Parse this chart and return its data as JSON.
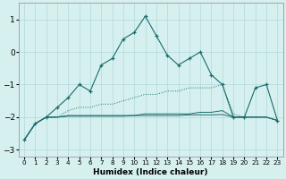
{
  "xlabel": "Humidex (Indice chaleur)",
  "background_color": "#d6f0f0",
  "grid_color": "#c8e8e8",
  "line_color": "#1a6b6b",
  "xlim": [
    -0.5,
    23.5
  ],
  "ylim": [
    -3.2,
    1.5
  ],
  "yticks": [
    -3,
    -2,
    -1,
    0,
    1
  ],
  "xticks": [
    0,
    1,
    2,
    3,
    4,
    5,
    6,
    7,
    8,
    9,
    10,
    11,
    12,
    13,
    14,
    15,
    16,
    17,
    18,
    19,
    20,
    21,
    22,
    23
  ],
  "s1_x": [
    0,
    1,
    2,
    3,
    4,
    5,
    6,
    7,
    8,
    9,
    10,
    11,
    12,
    13,
    14,
    15,
    16,
    17,
    18,
    19,
    20,
    21,
    22,
    23
  ],
  "s1_y": [
    -2.7,
    -2.2,
    -2.0,
    -1.7,
    -1.4,
    -1.0,
    -1.2,
    -0.4,
    -0.2,
    0.4,
    0.6,
    1.1,
    0.5,
    -0.1,
    -0.4,
    -0.2,
    0.0,
    -0.7,
    -1.0,
    -2.0,
    -2.0,
    -1.1,
    -1.0,
    -2.1
  ],
  "s2_x": [
    0,
    1,
    2,
    3,
    4,
    5,
    6,
    7,
    8,
    9,
    10,
    11,
    12,
    13,
    14,
    15,
    16,
    17,
    18,
    19,
    20,
    21,
    22,
    23
  ],
  "s2_y": [
    -2.7,
    -2.2,
    -2.0,
    -2.0,
    -1.8,
    -1.7,
    -1.7,
    -1.6,
    -1.6,
    -1.5,
    -1.4,
    -1.3,
    -1.3,
    -1.2,
    -1.2,
    -1.1,
    -1.1,
    -1.1,
    -1.0,
    -1.9,
    -2.0,
    -2.0,
    -2.0,
    -2.1
  ],
  "s3_x": [
    0,
    1,
    2,
    3,
    4,
    5,
    6,
    7,
    8,
    9,
    10,
    11,
    12,
    13,
    14,
    15,
    16,
    17,
    18,
    19,
    20,
    21,
    22,
    23
  ],
  "s3_y": [
    -2.7,
    -2.2,
    -2.0,
    -2.0,
    -1.95,
    -1.95,
    -1.95,
    -1.95,
    -1.95,
    -1.95,
    -1.95,
    -1.9,
    -1.9,
    -1.9,
    -1.9,
    -1.9,
    -1.85,
    -1.85,
    -1.8,
    -2.0,
    -2.0,
    -2.0,
    -2.0,
    -2.1
  ],
  "s4_x": [
    0,
    1,
    2,
    3,
    4,
    5,
    6,
    7,
    8,
    9,
    10,
    11,
    12,
    13,
    14,
    15,
    16,
    17,
    18,
    19,
    20,
    21,
    22,
    23
  ],
  "s4_y": [
    -2.7,
    -2.2,
    -2.0,
    -2.0,
    -1.97,
    -1.97,
    -1.97,
    -1.97,
    -1.97,
    -1.97,
    -1.95,
    -1.95,
    -1.95,
    -1.95,
    -1.95,
    -1.93,
    -1.93,
    -1.93,
    -1.92,
    -2.0,
    -2.0,
    -2.0,
    -2.0,
    -2.1
  ]
}
